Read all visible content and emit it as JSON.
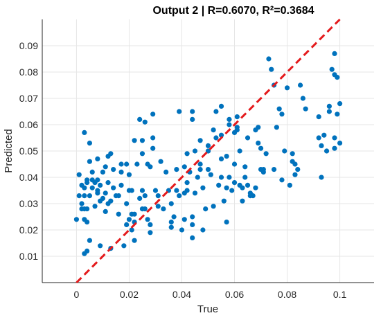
{
  "chart_data": {
    "type": "scatter",
    "title": "Output 2 | R=0.6070, R²=0.3684",
    "xlabel": "True",
    "ylabel": "Predicted",
    "xlim": [
      -0.013,
      0.113
    ],
    "ylim": [
      0.0,
      0.1
    ],
    "x_ticks": [
      0,
      0.02,
      0.04,
      0.06,
      0.08,
      0.1
    ],
    "x_tick_labels": [
      "0",
      "0.02",
      "0.04",
      "0.06",
      "0.08",
      "0.1"
    ],
    "y_ticks": [
      0.01,
      0.02,
      0.03,
      0.04,
      0.05,
      0.06,
      0.07,
      0.08,
      0.09
    ],
    "y_tick_labels": [
      "0.01",
      "0.02",
      "0.03",
      "0.04",
      "0.05",
      "0.06",
      "0.07",
      "0.08",
      "0.09"
    ],
    "grid": true,
    "colors": {
      "points": "#0072BD",
      "reference_line": "#E41A1C",
      "grid": "#e6e6e6",
      "axis": "#262626"
    },
    "reference_line": {
      "style": "dashed",
      "x": [
        0,
        0.1
      ],
      "y": [
        0,
        0.1
      ]
    },
    "series": [
      {
        "points": [
          [
            0.0,
            0.024
          ],
          [
            0.001,
            0.041
          ],
          [
            0.001,
            0.033
          ],
          [
            0.002,
            0.028
          ],
          [
            0.002,
            0.03
          ],
          [
            0.002,
            0.037
          ],
          [
            0.003,
            0.057
          ],
          [
            0.003,
            0.036
          ],
          [
            0.003,
            0.033
          ],
          [
            0.003,
            0.028
          ],
          [
            0.003,
            0.024
          ],
          [
            0.003,
            0.011
          ],
          [
            0.004,
            0.023
          ],
          [
            0.004,
            0.028
          ],
          [
            0.004,
            0.038
          ],
          [
            0.004,
            0.039
          ],
          [
            0.004,
            0.012
          ],
          [
            0.005,
            0.053
          ],
          [
            0.005,
            0.046
          ],
          [
            0.005,
            0.033
          ],
          [
            0.005,
            0.016
          ],
          [
            0.006,
            0.042
          ],
          [
            0.006,
            0.039
          ],
          [
            0.006,
            0.036
          ],
          [
            0.007,
            0.038
          ],
          [
            0.007,
            0.029
          ],
          [
            0.008,
            0.035
          ],
          [
            0.008,
            0.047
          ],
          [
            0.008,
            0.034
          ],
          [
            0.008,
            0.039
          ],
          [
            0.009,
            0.037
          ],
          [
            0.009,
            0.031
          ],
          [
            0.009,
            0.014
          ],
          [
            0.01,
            0.042
          ],
          [
            0.01,
            0.032
          ],
          [
            0.011,
            0.034
          ],
          [
            0.011,
            0.027
          ],
          [
            0.011,
            0.044
          ],
          [
            0.012,
            0.048
          ],
          [
            0.012,
            0.03
          ],
          [
            0.012,
            0.038
          ],
          [
            0.013,
            0.049
          ],
          [
            0.013,
            0.013
          ],
          [
            0.013,
            0.031
          ],
          [
            0.014,
            0.043
          ],
          [
            0.014,
            0.036
          ],
          [
            0.015,
            0.033
          ],
          [
            0.016,
            0.033
          ],
          [
            0.016,
            0.026
          ],
          [
            0.017,
            0.045
          ],
          [
            0.017,
            0.042
          ],
          [
            0.017,
            0.037
          ],
          [
            0.018,
            0.014
          ],
          [
            0.019,
            0.03
          ],
          [
            0.019,
            0.022
          ],
          [
            0.019,
            0.045
          ],
          [
            0.02,
            0.024
          ],
          [
            0.02,
            0.035
          ],
          [
            0.02,
            0.041
          ],
          [
            0.021,
            0.035
          ],
          [
            0.021,
            0.026
          ],
          [
            0.021,
            0.02
          ],
          [
            0.022,
            0.023
          ],
          [
            0.022,
            0.026
          ],
          [
            0.022,
            0.054
          ],
          [
            0.022,
            0.016
          ],
          [
            0.023,
            0.045
          ],
          [
            0.024,
            0.062
          ],
          [
            0.024,
            0.032
          ],
          [
            0.025,
            0.049
          ],
          [
            0.025,
            0.035
          ],
          [
            0.025,
            0.054
          ],
          [
            0.025,
            0.028
          ],
          [
            0.026,
            0.028
          ],
          [
            0.026,
            0.061
          ],
          [
            0.026,
            0.033
          ],
          [
            0.027,
            0.045
          ],
          [
            0.027,
            0.024
          ],
          [
            0.028,
            0.044
          ],
          [
            0.028,
            0.022
          ],
          [
            0.028,
            0.019
          ],
          [
            0.029,
            0.055
          ],
          [
            0.029,
            0.051
          ],
          [
            0.029,
            0.064
          ],
          [
            0.03,
            0.035
          ],
          [
            0.031,
            0.029
          ],
          [
            0.031,
            0.033
          ],
          [
            0.032,
            0.046
          ],
          [
            0.033,
            0.028
          ],
          [
            0.034,
            0.042
          ],
          [
            0.035,
            0.035
          ],
          [
            0.036,
            0.03
          ],
          [
            0.036,
            0.021
          ],
          [
            0.036,
            0.023
          ],
          [
            0.037,
            0.025
          ],
          [
            0.038,
            0.043
          ],
          [
            0.038,
            0.035
          ],
          [
            0.039,
            0.033
          ],
          [
            0.039,
            0.065
          ],
          [
            0.04,
            0.02
          ],
          [
            0.041,
            0.024
          ],
          [
            0.041,
            0.034
          ],
          [
            0.041,
            0.044
          ],
          [
            0.042,
            0.038
          ],
          [
            0.042,
            0.035
          ],
          [
            0.042,
            0.049
          ],
          [
            0.043,
            0.042
          ],
          [
            0.044,
            0.017
          ],
          [
            0.044,
            0.022
          ],
          [
            0.044,
            0.062
          ],
          [
            0.044,
            0.065
          ],
          [
            0.044,
            0.025
          ],
          [
            0.045,
            0.05
          ],
          [
            0.045,
            0.034
          ],
          [
            0.046,
            0.04
          ],
          [
            0.047,
            0.045
          ],
          [
            0.047,
            0.054
          ],
          [
            0.047,
            0.043
          ],
          [
            0.048,
            0.02
          ],
          [
            0.048,
            0.036
          ],
          [
            0.049,
            0.028
          ],
          [
            0.05,
            0.043
          ],
          [
            0.05,
            0.052
          ],
          [
            0.05,
            0.05
          ],
          [
            0.05,
            0.05
          ],
          [
            0.051,
            0.041
          ],
          [
            0.052,
            0.058
          ],
          [
            0.052,
            0.029
          ],
          [
            0.053,
            0.055
          ],
          [
            0.053,
            0.065
          ],
          [
            0.054,
            0.037
          ],
          [
            0.055,
            0.047
          ],
          [
            0.055,
            0.067
          ],
          [
            0.055,
            0.04
          ],
          [
            0.055,
            0.056
          ],
          [
            0.056,
            0.031
          ],
          [
            0.057,
            0.023
          ],
          [
            0.057,
            0.036
          ],
          [
            0.057,
            0.048
          ],
          [
            0.058,
            0.04
          ],
          [
            0.058,
            0.06
          ],
          [
            0.058,
            0.062
          ],
          [
            0.059,
            0.035
          ],
          [
            0.06,
            0.057
          ],
          [
            0.06,
            0.045
          ],
          [
            0.06,
            0.038
          ],
          [
            0.061,
            0.059
          ],
          [
            0.061,
            0.058
          ],
          [
            0.061,
            0.063
          ],
          [
            0.062,
            0.037
          ],
          [
            0.062,
            0.05
          ],
          [
            0.063,
            0.031
          ],
          [
            0.063,
            0.036
          ],
          [
            0.064,
            0.04
          ],
          [
            0.064,
            0.044
          ],
          [
            0.065,
            0.055
          ],
          [
            0.065,
            0.037
          ],
          [
            0.066,
            0.034
          ],
          [
            0.066,
            0.033
          ],
          [
            0.067,
            0.033
          ],
          [
            0.068,
            0.036
          ],
          [
            0.068,
            0.058
          ],
          [
            0.069,
            0.053
          ],
          [
            0.069,
            0.059
          ],
          [
            0.07,
            0.043
          ],
          [
            0.07,
            0.051
          ],
          [
            0.071,
            0.042
          ],
          [
            0.071,
            0.043
          ],
          [
            0.072,
            0.049
          ],
          [
            0.073,
            0.085
          ],
          [
            0.074,
            0.081
          ],
          [
            0.075,
            0.043
          ],
          [
            0.075,
            0.075
          ],
          [
            0.076,
            0.059
          ],
          [
            0.077,
            0.066
          ],
          [
            0.078,
            0.064
          ],
          [
            0.078,
            0.039
          ],
          [
            0.079,
            0.05
          ],
          [
            0.08,
            0.074
          ],
          [
            0.081,
            0.037
          ],
          [
            0.082,
            0.046
          ],
          [
            0.082,
            0.049
          ],
          [
            0.083,
            0.041
          ],
          [
            0.083,
            0.045
          ],
          [
            0.084,
            0.043
          ],
          [
            0.085,
            0.075
          ],
          [
            0.086,
            0.07
          ],
          [
            0.087,
            0.066
          ],
          [
            0.092,
            0.055
          ],
          [
            0.092,
            0.063
          ],
          [
            0.093,
            0.052
          ],
          [
            0.093,
            0.04
          ],
          [
            0.094,
            0.056
          ],
          [
            0.095,
            0.05
          ],
          [
            0.096,
            0.067
          ],
          [
            0.096,
            0.065
          ],
          [
            0.097,
            0.081
          ],
          [
            0.098,
            0.087
          ],
          [
            0.098,
            0.079
          ],
          [
            0.098,
            0.055
          ],
          [
            0.098,
            0.051
          ],
          [
            0.099,
            0.064
          ],
          [
            0.099,
            0.078
          ],
          [
            0.1,
            0.068
          ],
          [
            0.1,
            0.053
          ]
        ]
      }
    ]
  }
}
